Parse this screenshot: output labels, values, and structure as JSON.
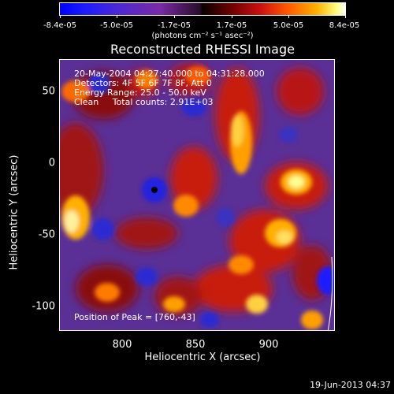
{
  "colorbar": {
    "tick_labels": [
      "-8.4e-05",
      "-5.0e-05",
      "-1.7e-05",
      "1.7e-05",
      "5.0e-05",
      "8.4e-05"
    ],
    "units": "(photons cm⁻² s⁻¹ asec⁻²)"
  },
  "plot": {
    "title": "Reconstructed RHESSI Image",
    "xlabel": "Heliocentric X (arcsec)",
    "ylabel": "Heliocentric Y (arcsec)",
    "x_ticks": [
      "800",
      "850",
      "900"
    ],
    "y_ticks": [
      "50",
      "0",
      "-50",
      "-100"
    ]
  },
  "info": {
    "line1": "20-May-2004 04:27:40.000 to 04:31:28.000",
    "line2": "Detectors: 4F 5F 6F 7F 8F, Att 0",
    "line3": "Energy Range: 25.0 - 50.0 keV",
    "line4": "Clean     Total counts: 2.91E+03"
  },
  "peak": "Position of Peak = [760,-43]",
  "footer_date": "19-Jun-2013 04:37"
}
